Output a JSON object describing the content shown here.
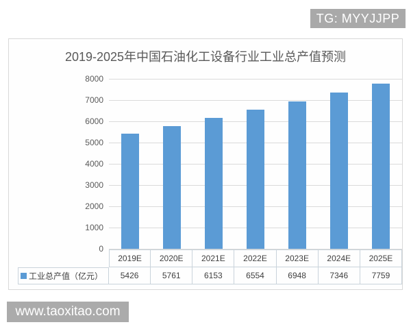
{
  "watermarks": {
    "tg_badge": "TG: MYYJJPP",
    "site_badge": "www.taoxitao.com"
  },
  "chart_data": {
    "type": "bar",
    "title": "2019-2025年中国石油化工设备行业工业总产值预测",
    "categories": [
      "2019E",
      "2020E",
      "2021E",
      "2022E",
      "2023E",
      "2024E",
      "2025E"
    ],
    "series": [
      {
        "name": "工业总产值（亿元）",
        "values": [
          5426,
          5761,
          6153,
          6554,
          6948,
          7346,
          7759
        ],
        "color": "#5b9bd5"
      }
    ],
    "xlabel": "",
    "ylabel": "",
    "ylim": [
      0,
      8000
    ],
    "yticks": [
      0,
      1000,
      2000,
      3000,
      4000,
      5000,
      6000,
      7000,
      8000
    ],
    "grid": true,
    "legend_position": "data-table-left",
    "data_table": true
  },
  "colors": {
    "bar": "#5b9bd5",
    "grid": "#dadada",
    "chart_border": "#d8d8d8",
    "table_border": "#c9d3db",
    "title_text": "#595959",
    "axis_text": "#595959",
    "table_text": "#3f3f3f",
    "badge_bg": "#a9a9a9",
    "badge_text": "#ffffff"
  }
}
